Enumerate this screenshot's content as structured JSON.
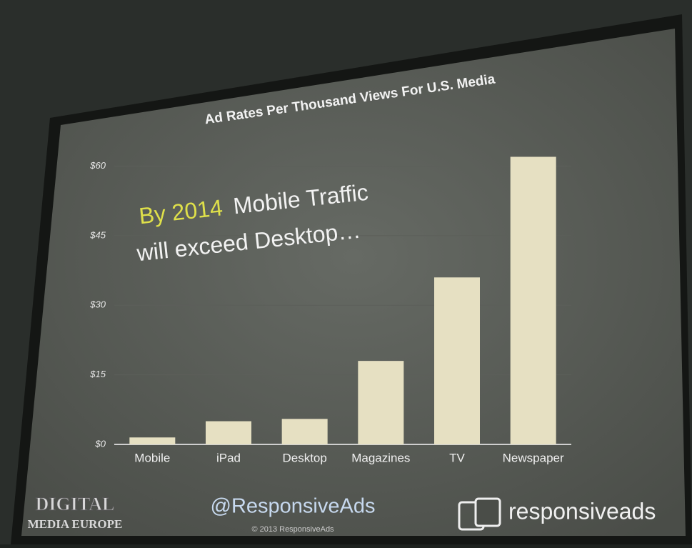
{
  "chart_data": {
    "type": "bar",
    "title": "Ad Rates Per Thousand Views For U.S. Media",
    "categories": [
      "Mobile",
      "iPad",
      "Desktop",
      "Magazines",
      "TV",
      "Newspaper"
    ],
    "values": [
      1.5,
      5,
      5.5,
      18,
      36,
      62
    ],
    "color": "#e6e0c2",
    "ylim": [
      0,
      65
    ],
    "yticks": [
      {
        "value": 0,
        "label": "$0"
      },
      {
        "value": 15,
        "label": "$15"
      },
      {
        "value": 30,
        "label": "$30"
      },
      {
        "value": 45,
        "label": "$45"
      },
      {
        "value": 60,
        "label": "$60"
      }
    ],
    "grid": true,
    "annotation": {
      "highlight": "By 2014",
      "line1": "Mobile Traffic",
      "line2": "will exceed Desktop…"
    }
  },
  "footer": {
    "event_logo": [
      "DIGITAL",
      "MEDIA EUROPE"
    ],
    "handle": "@ResponsiveAds",
    "copyright": "© 2013 ResponsiveAds",
    "brand": "responsiveads"
  }
}
